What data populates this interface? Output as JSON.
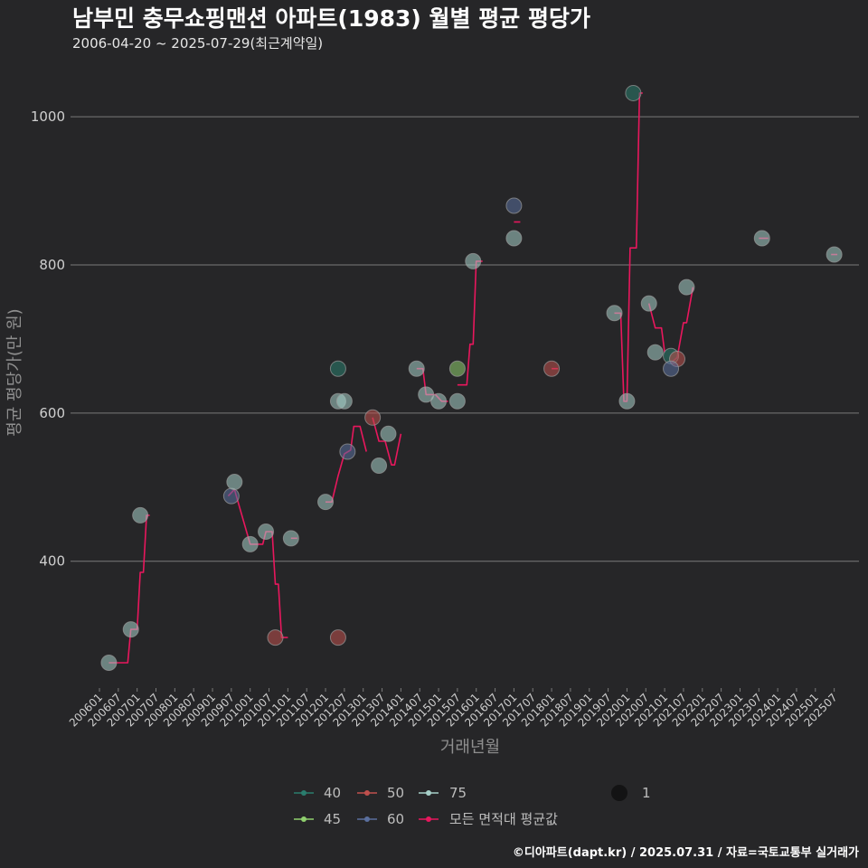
{
  "chart_data": {
    "type": "scatter",
    "title": "남부민 충무쇼핑맨션 아파트(1983) 월별 평균 평당가",
    "subtitle": "2006-04-20 ~ 2025-07-29(최근계약일)",
    "xlabel": "거래년월",
    "ylabel": "평균 평당가(만 원)",
    "caption": "©디아파트(dapt.kr) / 2025.07.31 / 자료=국토교통부 실거래가",
    "ylim": [
      230,
      1060
    ],
    "yticks": [
      400,
      600,
      800,
      1000
    ],
    "ytick_labels": [
      "400",
      "600",
      "800",
      "1000"
    ],
    "xlim": [
      "2006-01",
      "2025-12"
    ],
    "xticks": [
      "2006-01",
      "2006-07",
      "2007-01",
      "2007-07",
      "2008-01",
      "2008-07",
      "2009-01",
      "2009-07",
      "2010-01",
      "2010-07",
      "2011-01",
      "2011-07",
      "2012-01",
      "2012-07",
      "2013-01",
      "2013-07",
      "2014-01",
      "2014-07",
      "2015-01",
      "2015-07",
      "2016-01",
      "2016-07",
      "2017-01",
      "2017-07",
      "2018-01",
      "2018-07",
      "2019-01",
      "2019-07",
      "2020-01",
      "2020-07",
      "2021-01",
      "2021-07",
      "2022-01",
      "2022-07",
      "2023-01",
      "2023-07",
      "2024-01",
      "2024-07",
      "2025-01",
      "2025-07"
    ],
    "xtick_labels": [
      "200601",
      "200607",
      "200701",
      "200707",
      "200801",
      "200807",
      "200901",
      "200907",
      "201001",
      "201007",
      "201101",
      "201107",
      "201201",
      "201207",
      "201301",
      "201307",
      "201401",
      "201407",
      "201501",
      "201507",
      "201601",
      "201607",
      "201701",
      "201707",
      "201801",
      "201807",
      "201901",
      "201907",
      "202001",
      "202007",
      "202101",
      "202107",
      "202201",
      "202207",
      "202301",
      "202307",
      "202401",
      "202407",
      "202501",
      "202507"
    ],
    "series": [
      {
        "name": "40",
        "color": "#2a7d6e",
        "points": [
          {
            "x": "2012-05",
            "y": 660
          },
          {
            "x": "2020-03",
            "y": 1032
          },
          {
            "x": "2021-03",
            "y": 677
          }
        ]
      },
      {
        "name": "45",
        "color": "#8fcf6e",
        "points": [
          {
            "x": "2015-07",
            "y": 660
          }
        ]
      },
      {
        "name": "50",
        "color": "#c0504d",
        "points": [
          {
            "x": "2010-09",
            "y": 297
          },
          {
            "x": "2012-05",
            "y": 297
          },
          {
            "x": "2013-04",
            "y": 594
          },
          {
            "x": "2018-01",
            "y": 660
          },
          {
            "x": "2021-05",
            "y": 673
          }
        ]
      },
      {
        "name": "60",
        "color": "#5a6f9e",
        "points": [
          {
            "x": "2009-07",
            "y": 488
          },
          {
            "x": "2012-08",
            "y": 548
          },
          {
            "x": "2017-01",
            "y": 880
          },
          {
            "x": "2021-03",
            "y": 660
          }
        ]
      },
      {
        "name": "75",
        "color": "#a6cfc8",
        "points": [
          {
            "x": "2006-04",
            "y": 263
          },
          {
            "x": "2006-11",
            "y": 308
          },
          {
            "x": "2007-02",
            "y": 462
          },
          {
            "x": "2009-08",
            "y": 507
          },
          {
            "x": "2010-01",
            "y": 423
          },
          {
            "x": "2010-06",
            "y": 440
          },
          {
            "x": "2011-02",
            "y": 431
          },
          {
            "x": "2012-01",
            "y": 480
          },
          {
            "x": "2012-05",
            "y": 616
          },
          {
            "x": "2012-07",
            "y": 616
          },
          {
            "x": "2013-06",
            "y": 529
          },
          {
            "x": "2013-09",
            "y": 572
          },
          {
            "x": "2014-06",
            "y": 660
          },
          {
            "x": "2014-09",
            "y": 625
          },
          {
            "x": "2015-01",
            "y": 616
          },
          {
            "x": "2015-07",
            "y": 616
          },
          {
            "x": "2015-12",
            "y": 805
          },
          {
            "x": "2017-01",
            "y": 836
          },
          {
            "x": "2019-09",
            "y": 735
          },
          {
            "x": "2020-01",
            "y": 616
          },
          {
            "x": "2020-08",
            "y": 748
          },
          {
            "x": "2020-10",
            "y": 682
          },
          {
            "x": "2021-08",
            "y": 770
          },
          {
            "x": "2023-08",
            "y": 836
          },
          {
            "x": "2025-07",
            "y": 814
          }
        ]
      }
    ],
    "average_line": {
      "name": "모든 면적대 평균값",
      "color": "#e8175d",
      "segments": [
        [
          {
            "x": "2006-04",
            "y": 263
          },
          {
            "x": "2006-10",
            "y": 263
          },
          {
            "x": "2006-11",
            "y": 308
          },
          {
            "x": "2007-01",
            "y": 308
          },
          {
            "x": "2007-02",
            "y": 385
          },
          {
            "x": "2007-03",
            "y": 385
          },
          {
            "x": "2007-04",
            "y": 462
          },
          {
            "x": "2007-05",
            "y": 462
          }
        ],
        [
          {
            "x": "2009-06",
            "y": 488
          },
          {
            "x": "2009-08",
            "y": 497
          },
          {
            "x": "2010-01",
            "y": 423
          },
          {
            "x": "2010-05",
            "y": 423
          },
          {
            "x": "2010-06",
            "y": 440
          },
          {
            "x": "2010-08",
            "y": 440
          },
          {
            "x": "2010-09",
            "y": 369
          },
          {
            "x": "2010-10",
            "y": 369
          },
          {
            "x": "2010-11",
            "y": 297
          },
          {
            "x": "2011-01",
            "y": 297
          }
        ],
        [
          {
            "x": "2011-02",
            "y": 431
          },
          {
            "x": "2011-04",
            "y": 431
          }
        ],
        [
          {
            "x": "2012-01",
            "y": 480
          },
          {
            "x": "2012-03",
            "y": 480
          },
          {
            "x": "2012-05",
            "y": 515
          },
          {
            "x": "2012-07",
            "y": 545
          },
          {
            "x": "2012-09",
            "y": 550
          },
          {
            "x": "2012-10",
            "y": 582
          },
          {
            "x": "2012-12",
            "y": 582
          },
          {
            "x": "2013-02",
            "y": 548
          }
        ],
        [
          {
            "x": "2013-04",
            "y": 594
          },
          {
            "x": "2013-06",
            "y": 562
          },
          {
            "x": "2013-08",
            "y": 562
          },
          {
            "x": "2013-10",
            "y": 530
          },
          {
            "x": "2013-11",
            "y": 530
          },
          {
            "x": "2014-01",
            "y": 572
          }
        ],
        [
          {
            "x": "2014-06",
            "y": 660
          },
          {
            "x": "2014-08",
            "y": 660
          },
          {
            "x": "2014-09",
            "y": 625
          },
          {
            "x": "2014-12",
            "y": 625
          },
          {
            "x": "2015-02",
            "y": 616
          },
          {
            "x": "2015-04",
            "y": 616
          }
        ],
        [
          {
            "x": "2015-07",
            "y": 638
          },
          {
            "x": "2015-10",
            "y": 638
          },
          {
            "x": "2015-11",
            "y": 693
          },
          {
            "x": "2015-12",
            "y": 693
          },
          {
            "x": "2016-01",
            "y": 805
          },
          {
            "x": "2016-03",
            "y": 805
          }
        ],
        [
          {
            "x": "2017-01",
            "y": 858
          },
          {
            "x": "2017-03",
            "y": 858
          }
        ],
        [
          {
            "x": "2018-01",
            "y": 660
          },
          {
            "x": "2018-03",
            "y": 660
          }
        ],
        [
          {
            "x": "2019-09",
            "y": 735
          },
          {
            "x": "2019-11",
            "y": 735
          },
          {
            "x": "2019-12",
            "y": 616
          },
          {
            "x": "2020-01",
            "y": 616
          },
          {
            "x": "2020-02",
            "y": 823
          },
          {
            "x": "2020-04",
            "y": 823
          },
          {
            "x": "2020-05",
            "y": 1032
          },
          {
            "x": "2020-06",
            "y": 1032
          }
        ],
        [
          {
            "x": "2020-08",
            "y": 748
          },
          {
            "x": "2020-10",
            "y": 715
          },
          {
            "x": "2020-12",
            "y": 715
          },
          {
            "x": "2021-01",
            "y": 682
          }
        ],
        [
          {
            "x": "2021-03",
            "y": 668
          },
          {
            "x": "2021-05",
            "y": 675
          },
          {
            "x": "2021-07",
            "y": 722
          },
          {
            "x": "2021-08",
            "y": 722
          },
          {
            "x": "2021-10",
            "y": 770
          }
        ],
        [
          {
            "x": "2023-07",
            "y": 836
          },
          {
            "x": "2023-10",
            "y": 836
          }
        ],
        [
          {
            "x": "2025-06",
            "y": 814
          },
          {
            "x": "2025-08",
            "y": 814
          }
        ]
      ]
    },
    "legend": {
      "series_labels": [
        "40",
        "50",
        "75",
        "45",
        "60"
      ],
      "average_label": "모든 면적대 평균값",
      "size_label": "1",
      "position": "bottom"
    },
    "grid": true
  }
}
